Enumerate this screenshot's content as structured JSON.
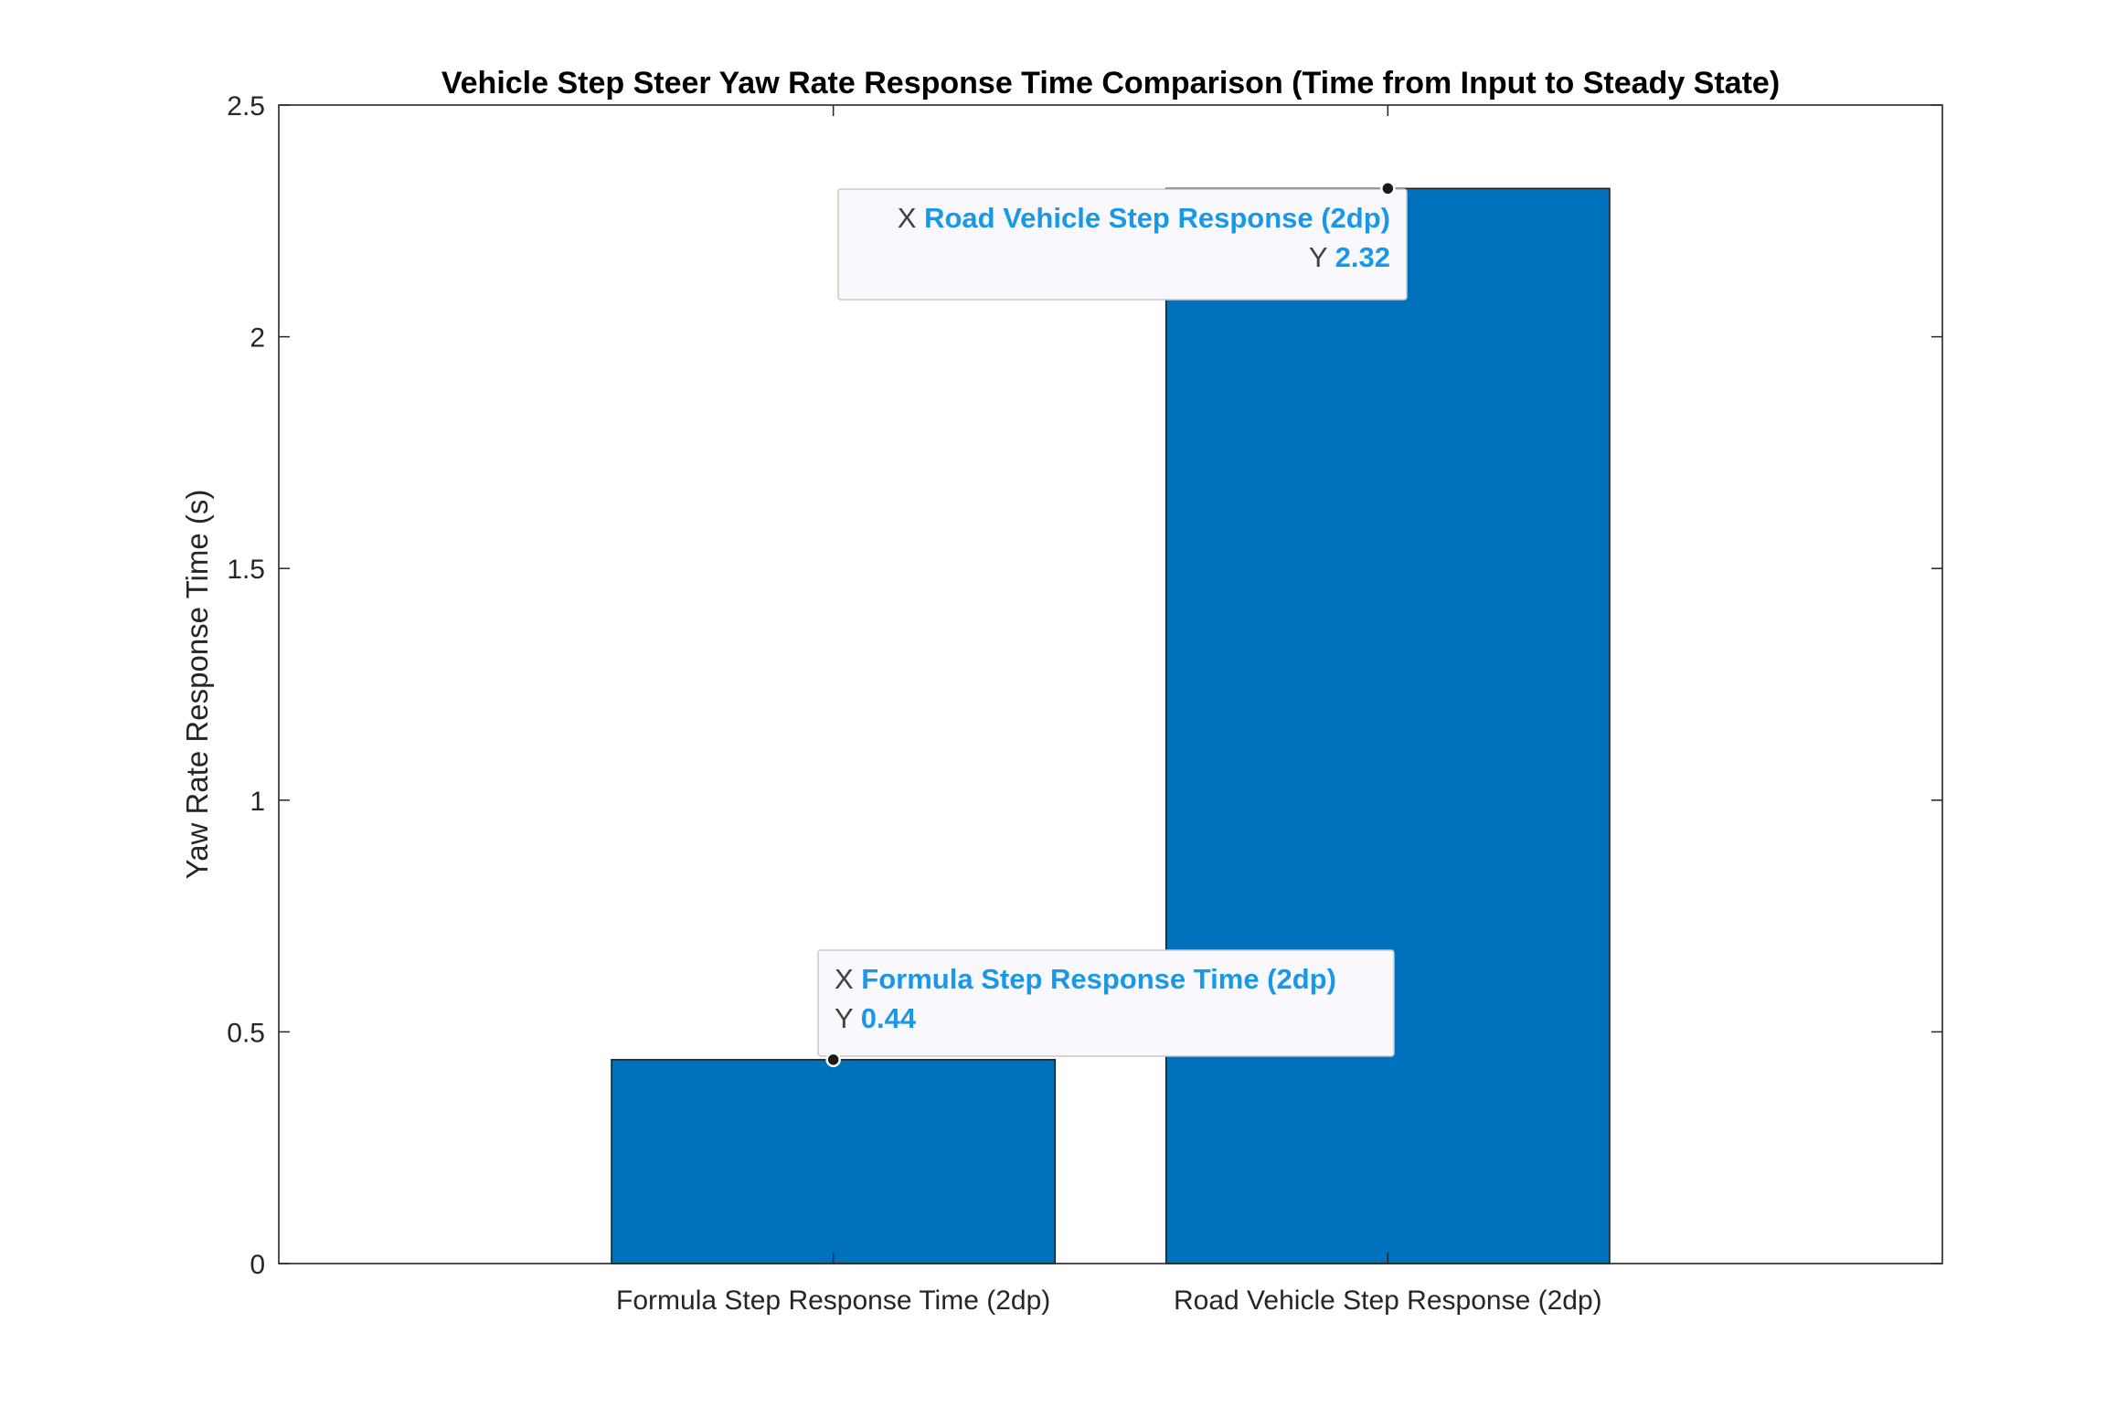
{
  "chart_data": {
    "type": "bar",
    "title": "Vehicle Step Steer Yaw Rate Response Time Comparison (Time from Input to Steady State)",
    "xlabel": "",
    "ylabel": "Yaw Rate Response Time (s)",
    "categories": [
      "Formula Step Response Time (2dp)",
      "Road Vehicle Step Response (2dp)"
    ],
    "values": [
      0.44,
      2.32
    ],
    "ylim": [
      0,
      2.5
    ],
    "yticks": [
      0,
      0.5,
      1,
      1.5,
      2,
      2.5
    ],
    "ytick_labels": [
      "0",
      "0.5",
      "1",
      "1.5",
      "2",
      "2.5"
    ],
    "grid": false,
    "bar_color": "#0072bd",
    "datatips": [
      {
        "x_key": "X",
        "x_value": "Formula Step Response Time (2dp)",
        "y_key": "Y",
        "y_value": "0.44"
      },
      {
        "x_key": "X",
        "x_value": "Road Vehicle Step Response (2dp)",
        "y_key": "Y",
        "y_value": "2.32"
      }
    ],
    "datatip_value_color": "#1a98e8"
  }
}
